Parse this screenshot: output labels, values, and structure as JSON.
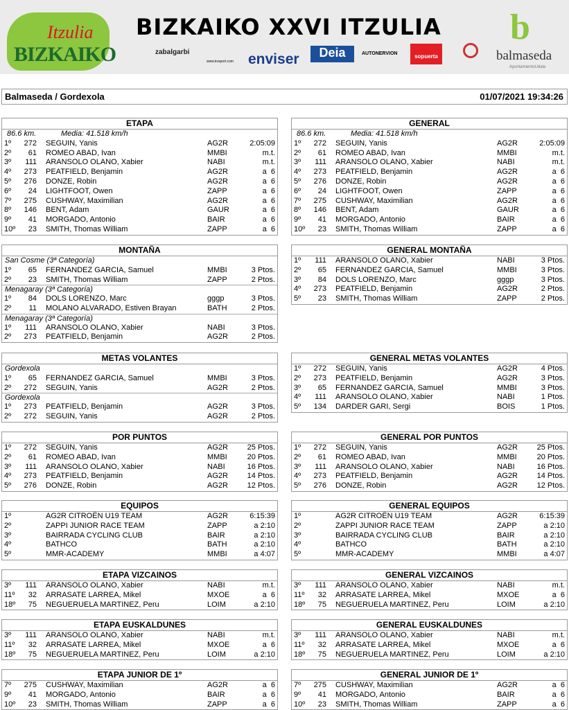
{
  "banner": {
    "title": "BIZKAIKO XXVI ITZULIA",
    "logo_left_top": "Itzulia",
    "logo_left_bottom": "BIZKAIKO",
    "sponsors": [
      "zabalgarbi",
      "www.kvsport.com",
      "enviser",
      "Deia",
      "AUTONERVION",
      "sopuerta"
    ],
    "right_logo": "balmaseda",
    "right_logo_sub": "AyuntamientoUdala"
  },
  "info": {
    "stage": "Balmaseda / Gordexola",
    "datetime": "01/07/2021 19:34:26"
  },
  "sections": [
    {
      "left": {
        "title": "ETAPA",
        "meta": [
          "86.6 km.",
          "Media: 41.518 km/h"
        ],
        "rows": [
          [
            "1º",
            "272",
            "SEGUIN, Yanis",
            "AG2R",
            "2:05:09"
          ],
          [
            "2º",
            "61",
            "ROMEO ABAD, Ivan",
            "MMBI",
            "m.t."
          ],
          [
            "3º",
            "111",
            "ARANSOLO OLANO, Xabier",
            "NABI",
            "m.t."
          ],
          [
            "4º",
            "273",
            "PEATFIELD, Benjamin",
            "AG2R",
            "a  6"
          ],
          [
            "5º",
            "276",
            "DONZE, Robin",
            "AG2R",
            "a  6"
          ],
          [
            "6º",
            "24",
            "LIGHTFOOT, Owen",
            "ZAPP",
            "a  6"
          ],
          [
            "7º",
            "275",
            "CUSHWAY, Maximilian",
            "AG2R",
            "a  6"
          ],
          [
            "8º",
            "146",
            "BENT, Adam",
            "GAUR",
            "a  6"
          ],
          [
            "9º",
            "41",
            "MORGADO, Antonio",
            "BAIR",
            "a  6"
          ],
          [
            "10º",
            "23",
            "SMITH, Thomas William",
            "ZAPP",
            "a  6"
          ]
        ]
      },
      "right": {
        "title": "GENERAL",
        "meta": [
          "86.6 km.",
          "Media: 41.518 km/h"
        ],
        "rows": [
          [
            "1º",
            "272",
            "SEGUIN, Yanis",
            "AG2R",
            "2:05:09"
          ],
          [
            "2º",
            "61",
            "ROMEO ABAD, Ivan",
            "MMBI",
            "m.t."
          ],
          [
            "3º",
            "111",
            "ARANSOLO OLANO, Xabier",
            "NABI",
            "m.t."
          ],
          [
            "4º",
            "273",
            "PEATFIELD, Benjamin",
            "AG2R",
            "a  6"
          ],
          [
            "5º",
            "276",
            "DONZE, Robin",
            "AG2R",
            "a  6"
          ],
          [
            "6º",
            "24",
            "LIGHTFOOT, Owen",
            "ZAPP",
            "a  6"
          ],
          [
            "7º",
            "275",
            "CUSHWAY, Maximilian",
            "AG2R",
            "a  6"
          ],
          [
            "8º",
            "146",
            "BENT, Adam",
            "GAUR",
            "a  6"
          ],
          [
            "9º",
            "41",
            "MORGADO, Antonio",
            "BAIR",
            "a  6"
          ],
          [
            "10º",
            "23",
            "SMITH, Thomas William",
            "ZAPP",
            "a  6"
          ]
        ]
      }
    },
    {
      "left": {
        "title": "MONTAÑA",
        "rows": [
          {
            "sub": "San Cosme  (3ª Categoría)"
          },
          [
            "1º",
            "65",
            "FERNANDEZ GARCIA, Samuel",
            "MMBI",
            "3 Ptos."
          ],
          [
            "2º",
            "23",
            "SMITH, Thomas William",
            "ZAPP",
            "2 Ptos."
          ],
          {
            "sub": "Menagaray  (3ª Categoría)"
          },
          [
            "1º",
            "84",
            "DOLS LORENZO, Marc",
            "gggp",
            "3 Ptos."
          ],
          [
            "2º",
            "11",
            "MOLANO ALVARADO, Estiven Brayan",
            "BATH",
            "2 Ptos."
          ],
          {
            "sub": "Menagaray  (3ª Categoría)"
          },
          [
            "1º",
            "111",
            "ARANSOLO OLANO, Xabier",
            "NABI",
            "3 Ptos."
          ],
          [
            "2º",
            "273",
            "PEATFIELD, Benjamin",
            "AG2R",
            "2 Ptos."
          ]
        ]
      },
      "right": {
        "title": "GENERAL MONTAÑA",
        "rows": [
          [
            "1º",
            "111",
            "ARANSOLO OLANO, Xabier",
            "NABI",
            "3 Ptos."
          ],
          [
            "2º",
            "65",
            "FERNANDEZ GARCIA, Samuel",
            "MMBI",
            "3 Ptos."
          ],
          [
            "3º",
            "84",
            "DOLS LORENZO, Marc",
            "gggp",
            "3 Ptos."
          ],
          [
            "4º",
            "273",
            "PEATFIELD, Benjamin",
            "AG2R",
            "2 Ptos."
          ],
          [
            "5º",
            "23",
            "SMITH, Thomas William",
            "ZAPP",
            "2 Ptos."
          ]
        ]
      }
    },
    {
      "left": {
        "title": "METAS VOLANTES",
        "rows": [
          {
            "sub": "Gordexola"
          },
          [
            "1º",
            "65",
            "FERNANDEZ GARCIA, Samuel",
            "MMBI",
            "3 Ptos."
          ],
          [
            "2º",
            "272",
            "SEGUIN, Yanis",
            "AG2R",
            "2 Ptos."
          ],
          {
            "sub": "Gordexola"
          },
          [
            "1º",
            "273",
            "PEATFIELD, Benjamin",
            "AG2R",
            "3 Ptos."
          ],
          [
            "2º",
            "272",
            "SEGUIN, Yanis",
            "AG2R",
            "2 Ptos."
          ]
        ]
      },
      "right": {
        "title": "GENERAL METAS VOLANTES",
        "rows": [
          [
            "1º",
            "272",
            "SEGUIN, Yanis",
            "AG2R",
            "4 Ptos."
          ],
          [
            "2º",
            "273",
            "PEATFIELD, Benjamin",
            "AG2R",
            "3 Ptos."
          ],
          [
            "3º",
            "65",
            "FERNANDEZ GARCIA, Samuel",
            "MMBI",
            "3 Ptos."
          ],
          [
            "4º",
            "111",
            "ARANSOLO OLANO, Xabier",
            "NABI",
            "1 Ptos."
          ],
          [
            "5º",
            "134",
            "DARDER GARI, Sergi",
            "BOIS",
            "1 Ptos."
          ]
        ]
      }
    },
    {
      "left": {
        "title": "POR PUNTOS",
        "rows": [
          [
            "1º",
            "272",
            "SEGUIN, Yanis",
            "AG2R",
            "25 Ptos."
          ],
          [
            "2º",
            "61",
            "ROMEO ABAD, Ivan",
            "MMBI",
            "20 Ptos."
          ],
          [
            "3º",
            "111",
            "ARANSOLO OLANO, Xabier",
            "NABI",
            "16 Ptos."
          ],
          [
            "4º",
            "273",
            "PEATFIELD, Benjamin",
            "AG2R",
            "14 Ptos."
          ],
          [
            "5º",
            "276",
            "DONZE, Robin",
            "AG2R",
            "12 Ptos."
          ]
        ]
      },
      "right": {
        "title": "GENERAL POR PUNTOS",
        "rows": [
          [
            "1º",
            "272",
            "SEGUIN, Yanis",
            "AG2R",
            "25 Ptos."
          ],
          [
            "2º",
            "61",
            "ROMEO ABAD, Ivan",
            "MMBI",
            "20 Ptos."
          ],
          [
            "3º",
            "111",
            "ARANSOLO OLANO, Xabier",
            "NABI",
            "16 Ptos."
          ],
          [
            "4º",
            "273",
            "PEATFIELD, Benjamin",
            "AG2R",
            "14 Ptos."
          ],
          [
            "5º",
            "276",
            "DONZE, Robin",
            "AG2R",
            "12 Ptos."
          ]
        ]
      }
    },
    {
      "left": {
        "title": "EQUIPOS",
        "rows": [
          [
            "1º",
            "",
            "AG2R CITROËN U19 TEAM",
            "AG2R",
            "6:15:39"
          ],
          [
            "2º",
            "",
            "ZAPPI JUNIOR RACE TEAM",
            "ZAPP",
            "a 2:10"
          ],
          [
            "3º",
            "",
            "BAIRRADA CYCLING CLUB",
            "BAIR",
            "a 2:10"
          ],
          [
            "4º",
            "",
            "BATHCO",
            "BATH",
            "a 2:10"
          ],
          [
            "5º",
            "",
            "MMR-ACADEMY",
            "MMBI",
            "a 4:07"
          ]
        ]
      },
      "right": {
        "title": "GENERAL EQUIPOS",
        "rows": [
          [
            "1º",
            "",
            "AG2R CITROËN U19 TEAM",
            "AG2R",
            "6:15:39"
          ],
          [
            "2º",
            "",
            "ZAPPI JUNIOR RACE TEAM",
            "ZAPP",
            "a 2:10"
          ],
          [
            "3º",
            "",
            "BAIRRADA CYCLING CLUB",
            "BAIR",
            "a 2:10"
          ],
          [
            "4º",
            "",
            "BATHCO",
            "BATH",
            "a 2:10"
          ],
          [
            "5º",
            "",
            "MMR-ACADEMY",
            "MMBI",
            "a 4:07"
          ]
        ]
      }
    },
    {
      "left": {
        "title": "ETAPA VIZCAINOS",
        "rows": [
          [
            "3º",
            "111",
            "ARANSOLO OLANO, Xabier",
            "NABI",
            "m.t."
          ],
          [
            "11º",
            "32",
            "ARRASATE LARREA, Mikel",
            "MXOE",
            "a  6"
          ],
          [
            "18º",
            "75",
            "NEGUERUELA MARTINEZ, Peru",
            "LOIM",
            "a 2:10"
          ]
        ]
      },
      "right": {
        "title": "GENERAL VIZCAINOS",
        "rows": [
          [
            "3º",
            "111",
            "ARANSOLO OLANO, Xabier",
            "NABI",
            "m.t."
          ],
          [
            "11º",
            "32",
            "ARRASATE LARREA, Mikel",
            "MXOE",
            "a  6"
          ],
          [
            "18º",
            "75",
            "NEGUERUELA MARTINEZ, Peru",
            "LOIM",
            "a 2:10"
          ]
        ]
      }
    },
    {
      "left": {
        "title": "ETAPA EUSKALDUNES",
        "rows": [
          [
            "3º",
            "111",
            "ARANSOLO OLANO, Xabier",
            "NABI",
            "m.t."
          ],
          [
            "11º",
            "32",
            "ARRASATE LARREA, Mikel",
            "MXOE",
            "a  6"
          ],
          [
            "18º",
            "75",
            "NEGUERUELA MARTINEZ, Peru",
            "LOIM",
            "a 2:10"
          ]
        ]
      },
      "right": {
        "title": "GENERAL EUSKALDUNES",
        "rows": [
          [
            "3º",
            "111",
            "ARANSOLO OLANO, Xabier",
            "NABI",
            "m.t."
          ],
          [
            "11º",
            "32",
            "ARRASATE LARREA, Mikel",
            "MXOE",
            "a  6"
          ],
          [
            "18º",
            "75",
            "NEGUERUELA MARTINEZ, Peru",
            "LOIM",
            "a 2:10"
          ]
        ]
      }
    },
    {
      "left": {
        "title": "ETAPA JUNIOR DE 1º",
        "rows": [
          [
            "7º",
            "275",
            "CUSHWAY, Maximilian",
            "AG2R",
            "a  6"
          ],
          [
            "9º",
            "41",
            "MORGADO, Antonio",
            "BAIR",
            "a  6"
          ],
          [
            "10º",
            "23",
            "SMITH, Thomas William",
            "ZAPP",
            "a  6"
          ]
        ]
      },
      "right": {
        "title": "GENERAL JUNIOR DE 1º",
        "rows": [
          [
            "7º",
            "275",
            "CUSHWAY, Maximilian",
            "AG2R",
            "a  6"
          ],
          [
            "9º",
            "41",
            "MORGADO, Antonio",
            "BAIR",
            "a  6"
          ],
          [
            "10º",
            "23",
            "SMITH, Thomas William",
            "ZAPP",
            "a  6"
          ]
        ]
      }
    }
  ]
}
